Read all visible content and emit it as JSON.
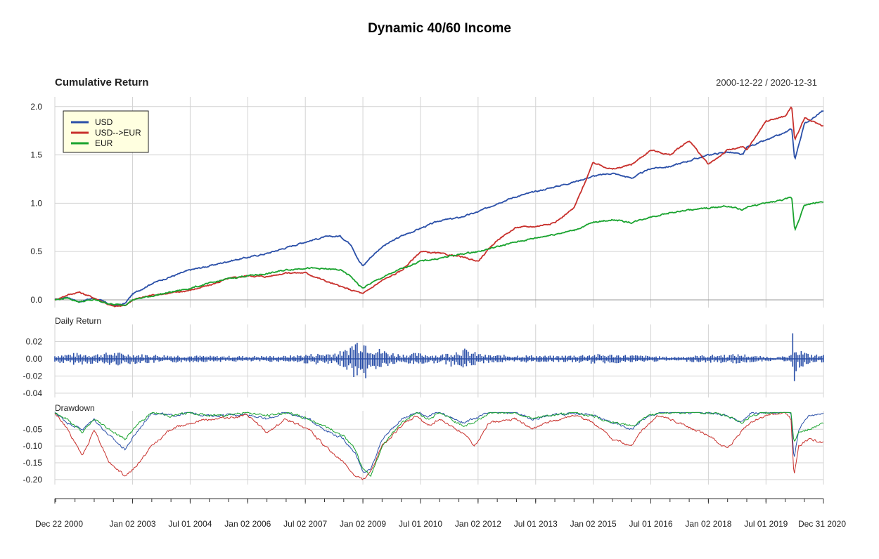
{
  "chart_data": {
    "type": "line",
    "title": "Dynamic 40/60 Income",
    "date_range": "2000-12-22 / 2020-12-31",
    "x_ticks": [
      "Dec 22 2000",
      "Jan 02 2003",
      "Jul 01 2004",
      "Jan 02 2006",
      "Jul 02 2007",
      "Jan 02 2009",
      "Jul 01 2010",
      "Jan 02 2012",
      "Jul 01 2013",
      "Jan 02 2015",
      "Jul 01 2016",
      "Jan 02 2018",
      "Jul 01 2019",
      "Dec 31 2020"
    ],
    "x_tick_values": [
      2000.975,
      2003.0,
      2004.5,
      2006.0,
      2007.5,
      2009.0,
      2010.5,
      2012.0,
      2013.5,
      2015.0,
      2016.5,
      2018.0,
      2019.5,
      2020.997
    ],
    "xlim": [
      2000.975,
      2020.997
    ],
    "legend": {
      "position": "top-left",
      "entries": [
        "USD",
        "USD-->EUR",
        "EUR"
      ]
    },
    "colors": {
      "USD": "#2a4fa8",
      "USD-->EUR": "#c8302c",
      "EUR": "#19a32e",
      "grid": "#d3d3d3"
    },
    "panels": {
      "cumulative": {
        "title": "Cumulative Return",
        "ylim": [
          -0.08,
          2.1
        ],
        "y_ticks": [
          "0.0",
          "0.5",
          "1.0",
          "1.5",
          "2.0"
        ],
        "y_tick_values": [
          0.0,
          0.5,
          1.0,
          1.5,
          2.0
        ],
        "series": [
          {
            "name": "USD",
            "x": [
              2000.98,
              2001.3,
              2001.6,
              2002.0,
              2002.5,
              2002.8,
              2003.0,
              2003.5,
              2004.0,
              2004.5,
              2005.0,
              2005.5,
              2006.0,
              2006.5,
              2007.0,
              2007.5,
              2008.0,
              2008.4,
              2008.7,
              2008.9,
              2009.0,
              2009.2,
              2009.5,
              2010.0,
              2010.5,
              2011.0,
              2011.5,
              2012.0,
              2012.5,
              2013.0,
              2013.5,
              2014.0,
              2014.5,
              2015.0,
              2015.5,
              2016.0,
              2016.5,
              2017.0,
              2017.5,
              2018.0,
              2018.5,
              2018.9,
              2019.0,
              2019.5,
              2020.0,
              2020.17,
              2020.25,
              2020.5,
              2021.0
            ],
            "y": [
              0.0,
              0.03,
              -0.02,
              0.02,
              -0.06,
              -0.04,
              0.06,
              0.17,
              0.24,
              0.31,
              0.35,
              0.4,
              0.44,
              0.48,
              0.54,
              0.6,
              0.65,
              0.66,
              0.57,
              0.4,
              0.35,
              0.44,
              0.55,
              0.66,
              0.74,
              0.82,
              0.85,
              0.91,
              1.0,
              1.07,
              1.12,
              1.17,
              1.22,
              1.28,
              1.31,
              1.26,
              1.36,
              1.38,
              1.44,
              1.5,
              1.53,
              1.5,
              1.58,
              1.65,
              1.73,
              1.77,
              1.45,
              1.82,
              1.96
            ]
          },
          {
            "name": "USD-->EUR",
            "x": [
              2000.98,
              2001.3,
              2001.6,
              2002.0,
              2002.5,
              2002.8,
              2003.0,
              2003.5,
              2004.0,
              2004.5,
              2005.0,
              2005.5,
              2006.0,
              2006.5,
              2007.0,
              2007.5,
              2008.0,
              2008.4,
              2008.7,
              2008.9,
              2009.0,
              2009.2,
              2009.5,
              2010.0,
              2010.5,
              2011.0,
              2011.5,
              2012.0,
              2012.5,
              2013.0,
              2013.5,
              2014.0,
              2014.5,
              2015.0,
              2015.5,
              2016.0,
              2016.5,
              2017.0,
              2017.5,
              2018.0,
              2018.5,
              2018.9,
              2019.0,
              2019.5,
              2020.0,
              2020.17,
              2020.25,
              2020.5,
              2021.0
            ],
            "y": [
              0.0,
              0.05,
              0.08,
              0.02,
              -0.07,
              -0.06,
              0.0,
              0.05,
              0.07,
              0.1,
              0.15,
              0.22,
              0.25,
              0.24,
              0.28,
              0.28,
              0.2,
              0.14,
              0.1,
              0.08,
              0.06,
              0.12,
              0.2,
              0.3,
              0.5,
              0.48,
              0.45,
              0.4,
              0.62,
              0.75,
              0.76,
              0.8,
              0.95,
              1.42,
              1.35,
              1.4,
              1.55,
              1.5,
              1.65,
              1.4,
              1.55,
              1.58,
              1.55,
              1.85,
              1.9,
              2.0,
              1.65,
              1.88,
              1.8
            ]
          },
          {
            "name": "EUR",
            "x": [
              2000.98,
              2001.3,
              2001.6,
              2002.0,
              2002.5,
              2002.8,
              2003.0,
              2003.5,
              2004.0,
              2004.5,
              2005.0,
              2005.5,
              2006.0,
              2006.5,
              2007.0,
              2007.5,
              2008.0,
              2008.4,
              2008.7,
              2008.9,
              2009.0,
              2009.2,
              2009.5,
              2010.0,
              2010.5,
              2011.0,
              2011.5,
              2012.0,
              2012.5,
              2013.0,
              2013.5,
              2014.0,
              2014.5,
              2015.0,
              2015.5,
              2016.0,
              2016.5,
              2017.0,
              2017.5,
              2018.0,
              2018.5,
              2018.9,
              2019.0,
              2019.5,
              2020.0,
              2020.17,
              2020.25,
              2020.5,
              2021.0
            ],
            "y": [
              0.0,
              0.02,
              -0.02,
              0.0,
              -0.05,
              -0.05,
              0.0,
              0.04,
              0.08,
              0.12,
              0.17,
              0.22,
              0.25,
              0.27,
              0.31,
              0.33,
              0.32,
              0.31,
              0.24,
              0.15,
              0.12,
              0.17,
              0.23,
              0.32,
              0.4,
              0.43,
              0.47,
              0.5,
              0.55,
              0.6,
              0.64,
              0.68,
              0.72,
              0.8,
              0.83,
              0.8,
              0.86,
              0.9,
              0.93,
              0.95,
              0.97,
              0.93,
              0.96,
              1.0,
              1.04,
              1.06,
              0.72,
              0.98,
              1.02
            ]
          }
        ]
      },
      "daily": {
        "title": "Daily Return",
        "ylim": [
          -0.045,
          0.04
        ],
        "y_ticks": [
          "0.02",
          "0.00",
          "-0.02",
          "-0.04"
        ],
        "y_tick_values": [
          0.02,
          0.0,
          -0.02,
          -0.04
        ],
        "vol_x": [
          2000.98,
          2001.5,
          2002.0,
          2002.5,
          2003.0,
          2004.0,
          2005.0,
          2006.0,
          2007.0,
          2007.6,
          2008.0,
          2008.5,
          2008.8,
          2009.0,
          2009.3,
          2009.7,
          2010.0,
          2010.4,
          2011.0,
          2011.6,
          2011.8,
          2012.2,
          2013.0,
          2014.0,
          2015.0,
          2016.0,
          2017.0,
          2018.0,
          2018.9,
          2019.2,
          2019.8,
          2020.15,
          2020.2,
          2020.3,
          2020.6,
          2021.0
        ],
        "vol_y": [
          0.004,
          0.006,
          0.005,
          0.007,
          0.005,
          0.004,
          0.003,
          0.003,
          0.003,
          0.005,
          0.006,
          0.008,
          0.02,
          0.022,
          0.012,
          0.007,
          0.005,
          0.006,
          0.004,
          0.011,
          0.008,
          0.004,
          0.004,
          0.003,
          0.005,
          0.004,
          0.002,
          0.004,
          0.005,
          0.003,
          0.002,
          0.003,
          0.03,
          0.012,
          0.005,
          0.004
        ]
      },
      "drawdown": {
        "title": "Drawdown",
        "ylim": [
          -0.215,
          0.005
        ],
        "y_ticks": [
          "-0.05",
          "-0.10",
          "-0.15",
          "-0.20"
        ],
        "y_tick_values": [
          -0.05,
          -0.1,
          -0.15,
          -0.2
        ],
        "series": [
          {
            "name": "USD",
            "x": [
              2000.98,
              2001.3,
              2001.7,
              2002.0,
              2002.4,
              2002.8,
              2003.1,
              2003.5,
              2004.0,
              2004.5,
              2005.0,
              2006.0,
              2006.5,
              2007.0,
              2007.6,
              2008.0,
              2008.5,
              2008.8,
              2009.0,
              2009.2,
              2009.5,
              2010.0,
              2010.4,
              2010.7,
              2011.0,
              2011.6,
              2011.9,
              2012.3,
              2013.0,
              2013.4,
              2013.8,
              2014.5,
              2015.0,
              2015.5,
              2016.0,
              2016.3,
              2016.7,
              2017.0,
              2018.0,
              2018.5,
              2018.9,
              2019.1,
              2019.5,
              2020.0,
              2020.15,
              2020.23,
              2020.35,
              2020.6,
              2021.0
            ],
            "y": [
              0.0,
              -0.03,
              -0.05,
              -0.02,
              -0.07,
              -0.11,
              -0.06,
              0.0,
              -0.01,
              0.0,
              -0.01,
              -0.005,
              -0.02,
              0.0,
              -0.02,
              -0.05,
              -0.08,
              -0.12,
              -0.18,
              -0.17,
              -0.08,
              -0.02,
              0.0,
              -0.01,
              0.0,
              -0.03,
              -0.02,
              0.0,
              0.0,
              -0.02,
              -0.01,
              0.0,
              -0.01,
              -0.03,
              -0.05,
              -0.02,
              0.0,
              0.0,
              0.0,
              -0.01,
              -0.03,
              0.0,
              0.0,
              0.0,
              0.0,
              -0.14,
              -0.05,
              -0.01,
              0.0
            ]
          },
          {
            "name": "USD-->EUR",
            "x": [
              2000.98,
              2001.3,
              2001.7,
              2002.0,
              2002.4,
              2002.8,
              2003.1,
              2003.5,
              2004.0,
              2004.5,
              2005.0,
              2006.0,
              2006.5,
              2007.0,
              2007.6,
              2008.0,
              2008.5,
              2008.8,
              2009.0,
              2009.2,
              2009.5,
              2010.0,
              2010.4,
              2010.7,
              2011.0,
              2011.6,
              2011.9,
              2012.3,
              2013.0,
              2013.4,
              2013.8,
              2014.5,
              2015.0,
              2015.5,
              2016.0,
              2016.3,
              2016.7,
              2017.0,
              2018.0,
              2018.5,
              2018.9,
              2019.1,
              2019.5,
              2020.0,
              2020.15,
              2020.23,
              2020.35,
              2020.6,
              2021.0
            ],
            "y": [
              0.0,
              -0.05,
              -0.13,
              -0.05,
              -0.15,
              -0.19,
              -0.16,
              -0.1,
              -0.05,
              -0.03,
              -0.02,
              -0.01,
              -0.06,
              -0.02,
              -0.05,
              -0.1,
              -0.15,
              -0.19,
              -0.2,
              -0.18,
              -0.1,
              -0.04,
              -0.01,
              -0.04,
              -0.02,
              -0.06,
              -0.1,
              -0.03,
              -0.02,
              -0.05,
              -0.03,
              -0.01,
              -0.03,
              -0.08,
              -0.1,
              -0.05,
              -0.01,
              -0.02,
              -0.07,
              -0.11,
              -0.05,
              -0.03,
              -0.01,
              0.0,
              -0.02,
              -0.19,
              -0.1,
              -0.08,
              -0.09
            ]
          },
          {
            "name": "EUR",
            "x": [
              2000.98,
              2001.3,
              2001.7,
              2002.0,
              2002.4,
              2002.8,
              2003.1,
              2003.5,
              2004.0,
              2004.5,
              2005.0,
              2006.0,
              2006.5,
              2007.0,
              2007.6,
              2008.0,
              2008.5,
              2008.8,
              2009.0,
              2009.2,
              2009.5,
              2010.0,
              2010.4,
              2010.7,
              2011.0,
              2011.6,
              2011.9,
              2012.3,
              2013.0,
              2013.4,
              2013.8,
              2014.5,
              2015.0,
              2015.5,
              2016.0,
              2016.3,
              2016.7,
              2017.0,
              2018.0,
              2018.5,
              2018.9,
              2019.1,
              2019.5,
              2020.0,
              2020.15,
              2020.23,
              2020.35,
              2020.6,
              2021.0
            ],
            "y": [
              0.0,
              -0.02,
              -0.06,
              -0.02,
              -0.05,
              -0.08,
              -0.04,
              0.0,
              -0.01,
              0.0,
              -0.01,
              0.0,
              -0.01,
              0.0,
              -0.02,
              -0.04,
              -0.07,
              -0.11,
              -0.17,
              -0.19,
              -0.1,
              -0.03,
              0.0,
              -0.02,
              0.0,
              -0.04,
              -0.03,
              0.0,
              0.0,
              -0.02,
              -0.01,
              0.0,
              -0.01,
              -0.03,
              -0.04,
              -0.02,
              0.0,
              0.0,
              0.0,
              -0.01,
              -0.03,
              -0.01,
              0.0,
              0.0,
              0.0,
              -0.09,
              -0.06,
              -0.05,
              -0.03
            ]
          }
        ]
      }
    }
  }
}
